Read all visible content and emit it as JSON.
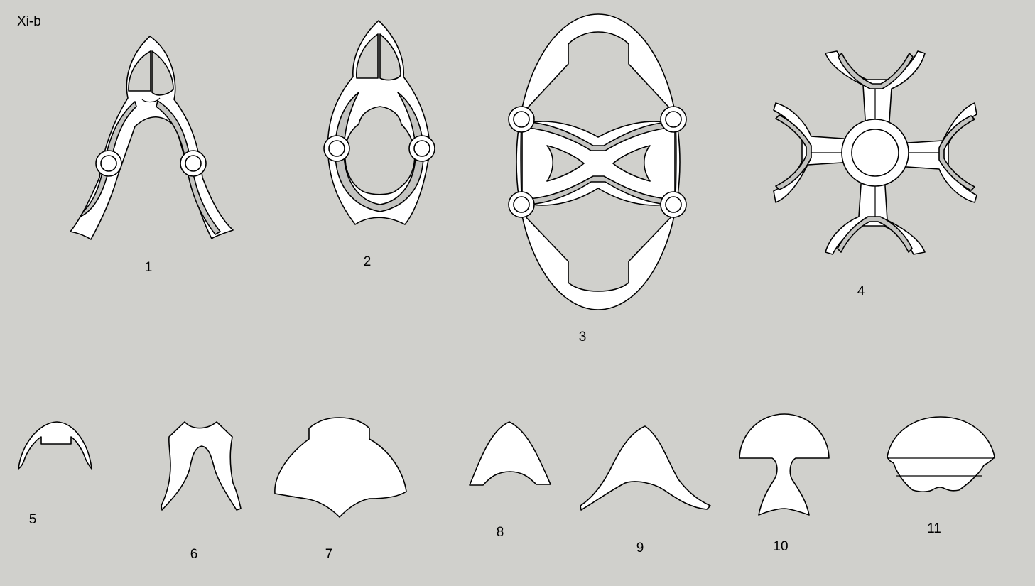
{
  "sheet": {
    "title": "Xi-b"
  },
  "pieces": [
    {
      "id": "piece-1",
      "label": "1"
    },
    {
      "id": "piece-2",
      "label": "2"
    },
    {
      "id": "piece-3",
      "label": "3"
    },
    {
      "id": "piece-4",
      "label": "4"
    },
    {
      "id": "piece-5",
      "label": "5"
    },
    {
      "id": "piece-6",
      "label": "6"
    },
    {
      "id": "piece-7",
      "label": "7"
    },
    {
      "id": "piece-8",
      "label": "8"
    },
    {
      "id": "piece-9",
      "label": "9"
    },
    {
      "id": "piece-10",
      "label": "10"
    },
    {
      "id": "piece-11",
      "label": "11"
    }
  ]
}
